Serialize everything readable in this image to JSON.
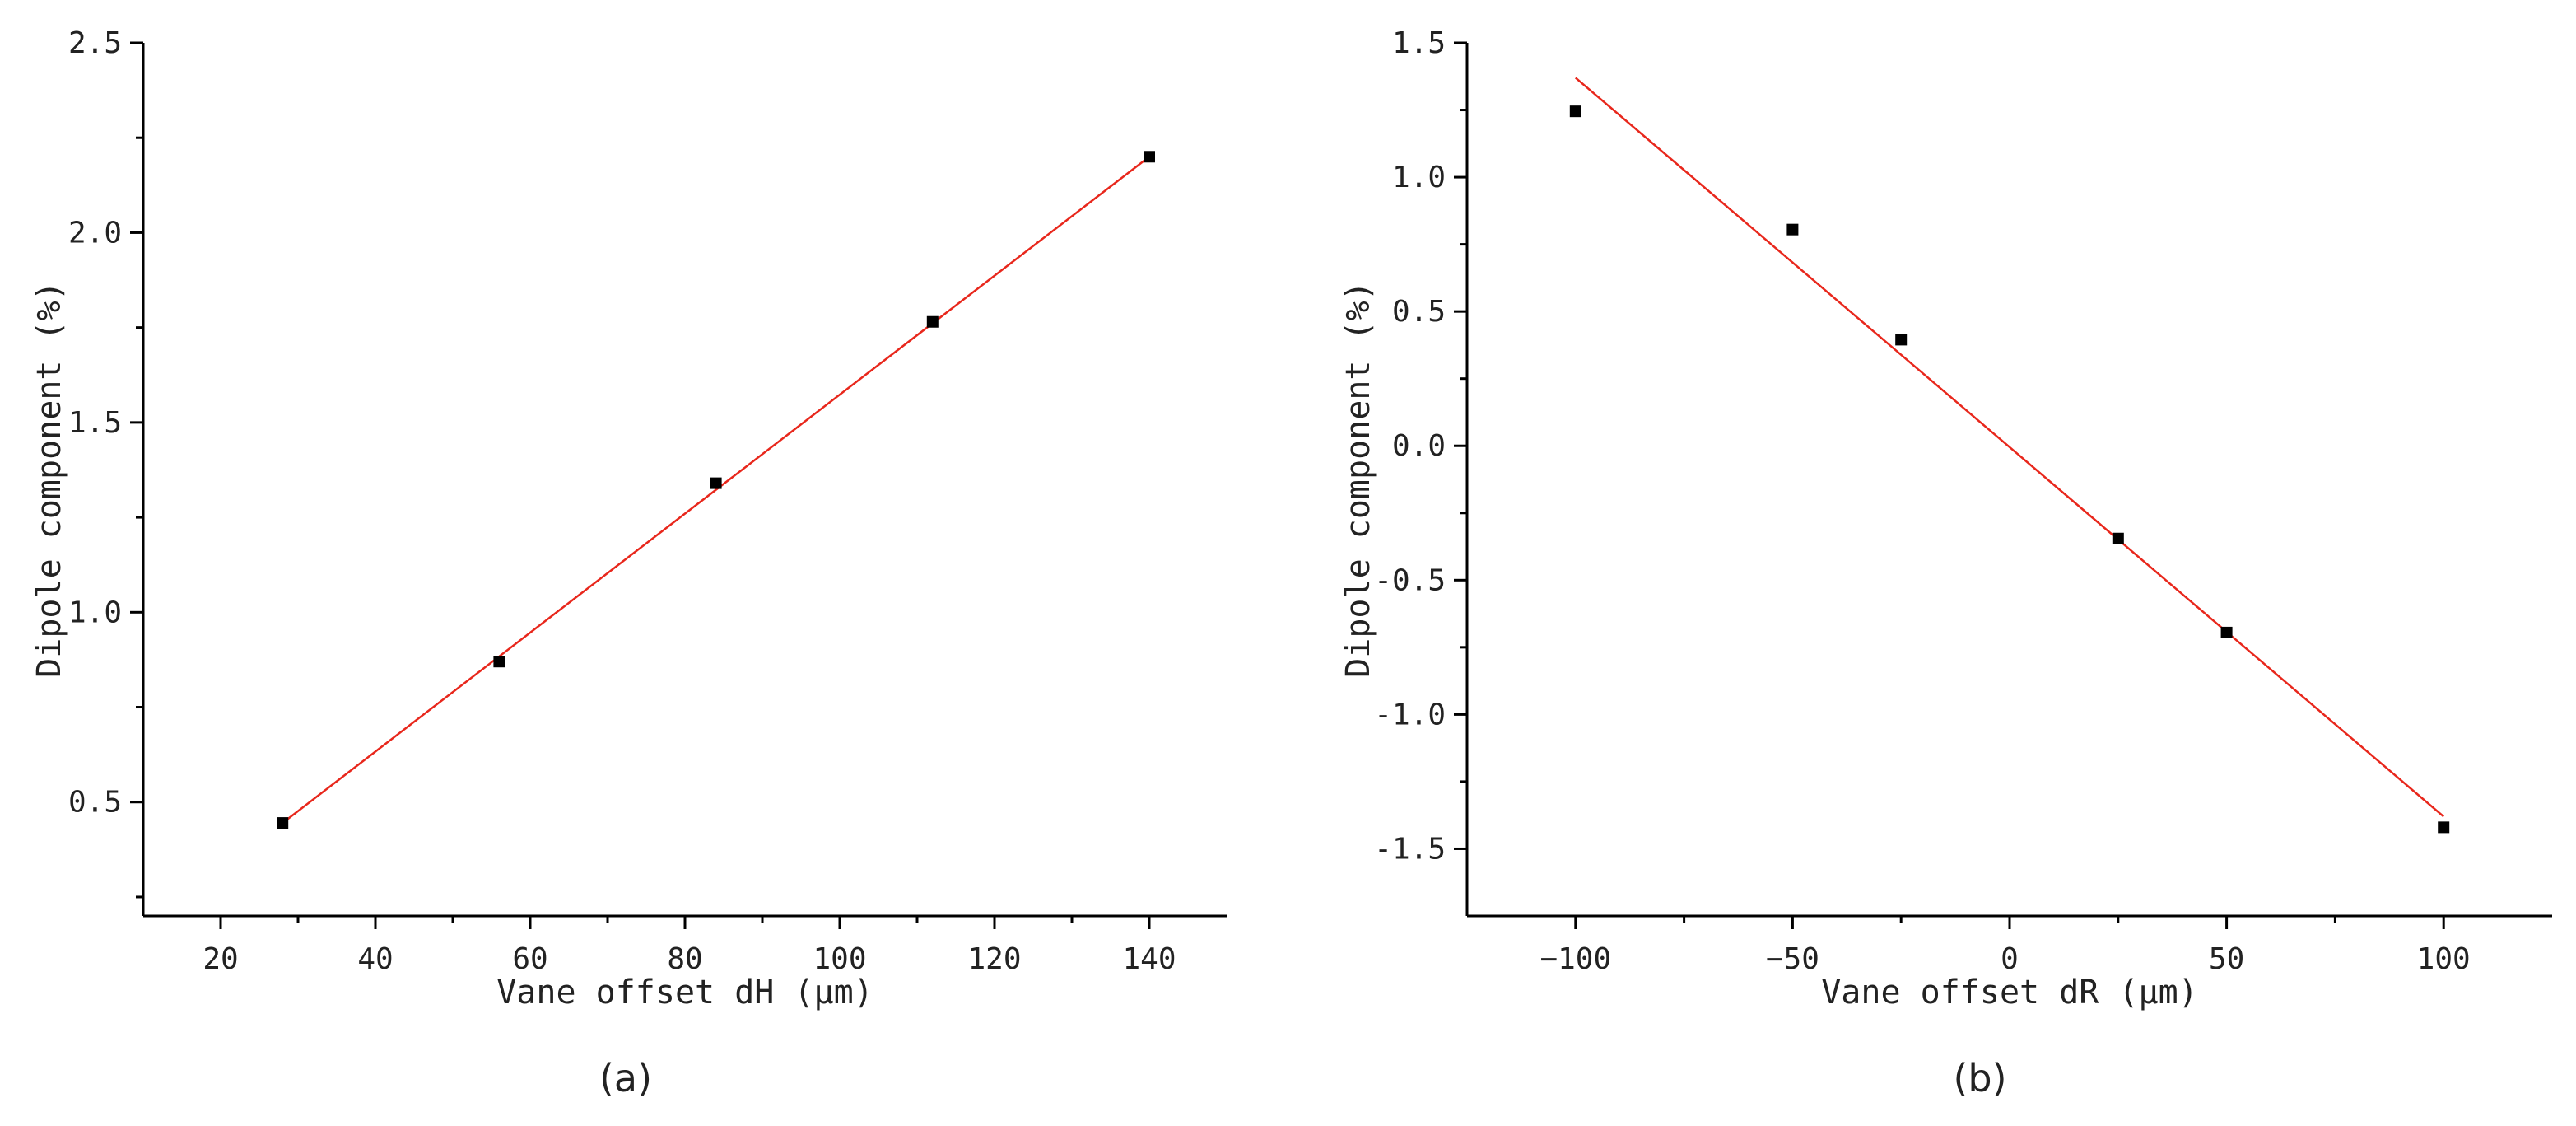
{
  "colors": {
    "fit_line": "#e8271c",
    "marker": "#000000",
    "axis": "#000000"
  },
  "chart_data": [
    {
      "type": "scatter",
      "panel_label": "(a)",
      "xlabel": "Vane offset dH (μm)",
      "ylabel": "Dipole component (%)",
      "xlim": [
        10,
        150
      ],
      "ylim": [
        0.2,
        2.5
      ],
      "xticks": [
        20,
        40,
        60,
        80,
        100,
        120,
        140
      ],
      "xtick_labels": [
        "20",
        "40",
        "60",
        "80",
        "100",
        "120",
        "140"
      ],
      "yticks": [
        0.5,
        1.0,
        1.5,
        2.0,
        2.5
      ],
      "ytick_labels": [
        "0.5",
        "1.0",
        "1.5",
        "2.0",
        "2.5"
      ],
      "grid": false,
      "series": [
        {
          "marker": "square",
          "x": [
            28,
            56,
            84,
            112,
            140
          ],
          "y": [
            0.445,
            0.87,
            1.34,
            1.765,
            2.2
          ]
        }
      ],
      "fit_line": {
        "x": [
          28,
          140
        ],
        "y": [
          0.445,
          2.2
        ]
      }
    },
    {
      "type": "scatter",
      "panel_label": "(b)",
      "xlabel": "Vane offset dR (μm)",
      "ylabel": "Dipole component (%)",
      "xlim": [
        -125,
        125
      ],
      "ylim": [
        -1.75,
        1.5
      ],
      "xticks": [
        -100,
        -50,
        0,
        50,
        100
      ],
      "xtick_labels": [
        "−100",
        "−50",
        "0",
        "50",
        "100"
      ],
      "yticks": [
        -1.5,
        -1.0,
        -0.5,
        0.0,
        0.5,
        1.0,
        1.5
      ],
      "ytick_labels": [
        "-1.5",
        "-1.0",
        "-0.5",
        "0.0",
        "0.5",
        "1.0",
        "1.5"
      ],
      "grid": false,
      "series": [
        {
          "marker": "square",
          "x": [
            -100,
            -50,
            -25,
            25,
            50,
            100
          ],
          "y": [
            1.245,
            0.805,
            0.395,
            -0.345,
            -0.695,
            -1.42
          ]
        }
      ],
      "fit_line": {
        "x": [
          -100,
          100
        ],
        "y": [
          1.37,
          -1.38
        ]
      }
    }
  ]
}
